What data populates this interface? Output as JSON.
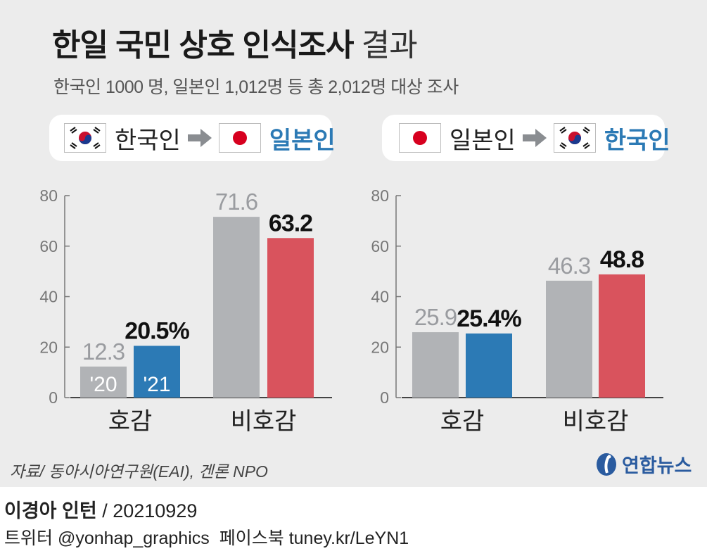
{
  "title": "한일 국민 상호 인식조사",
  "title_suffix": "결과",
  "subtitle": "한국인 1000 명, 일본인 1,012명 등 총 2,012명 대상 조사",
  "colors": {
    "gray": "#b1b3b6",
    "blue": "#2c7ab5",
    "red": "#d9535d",
    "bg": "#ececec"
  },
  "panels": [
    {
      "from": "한국인",
      "from_flag": "south-korea-flag-icon",
      "to": "일본인",
      "to_flag": "japan-flag-icon"
    },
    {
      "from": "일본인",
      "from_flag": "japan-flag-icon",
      "to": "한국인",
      "to_flag": "south-korea-flag-icon"
    }
  ],
  "chart_data": [
    {
      "type": "bar",
      "categories": [
        "호감",
        "비호감"
      ],
      "series_labels": [
        "'20",
        "'21"
      ],
      "series": [
        {
          "values": [
            12.3,
            71.6
          ],
          "labels": [
            "12.3",
            "71.6"
          ]
        },
        {
          "values": [
            20.5,
            63.2
          ],
          "labels": [
            "20.5%",
            "63.2"
          ]
        }
      ],
      "category_colors": [
        [
          "#b1b3b6",
          "#2c7ab5"
        ],
        [
          "#b1b3b6",
          "#d9535d"
        ]
      ],
      "yticks": [
        "0",
        "20",
        "40",
        "60",
        "80"
      ],
      "ylim": [
        0,
        80
      ],
      "grid": false
    },
    {
      "type": "bar",
      "categories": [
        "호감",
        "비호감"
      ],
      "series": [
        {
          "values": [
            25.9,
            46.3
          ],
          "labels": [
            "25.9",
            "46.3"
          ]
        },
        {
          "values": [
            25.4,
            48.8
          ],
          "labels": [
            "25.4%",
            "48.8"
          ]
        }
      ],
      "category_colors": [
        [
          "#b1b3b6",
          "#2c7ab5"
        ],
        [
          "#b1b3b6",
          "#d9535d"
        ]
      ],
      "yticks": [
        "0",
        "20",
        "40",
        "60",
        "80"
      ],
      "ylim": [
        0,
        80
      ],
      "grid": false
    }
  ],
  "source": "자료/ 동아시아연구원(EAI), 겐론 NPO",
  "logo_text": "연합뉴스",
  "credit_author": "이경아 인턴",
  "credit_date": "/ 20210929",
  "footer_twitter": "트위터 @yonhap_graphics",
  "footer_facebook": "페이스북 tuney.kr/LeYN1"
}
